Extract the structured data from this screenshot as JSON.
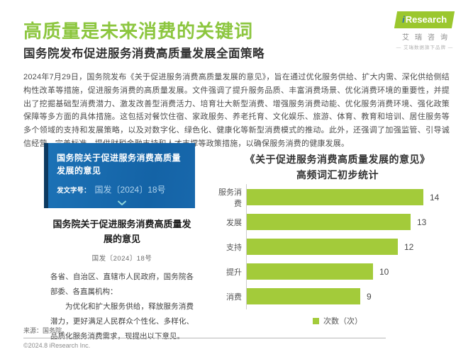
{
  "header": {
    "title": "高质量是未来消费的关键词",
    "subtitle": "国务院发布促进服务消费高质量发展全面策略"
  },
  "logo": {
    "brand_i": "i",
    "brand_text": "Research",
    "brand_cn": "艾瑞咨询",
    "tagline": "— 艾瑞数据旗下品牌 —"
  },
  "intro_paragraph": "2024年7月29日，国务院发布《关于促进服务消费高质量发展的意见》，旨在通过优化服务供给、扩大内需、深化供给侧结构性改革等措施，促进服务消费的高质量发展。文件强调了提升服务品质、丰富消费场景、优化消费环境的重要性，并提出了挖掘基础型消费潜力、激发改善型消费活力、培育壮大新型消费、增强服务消费动能、优化服务消费环境、强化政策保障等多方面的具体措施。这包括对餐饮住宿、家政服务、养老托育、文化娱乐、旅游、体育、教育和培训、居住服务等多个领域的支持和发展策略，以及对数字化、绿色化、健康化等新型消费模式的推动。此外，还强调了加强监管、引导诚信经营、完善标准、提供财税金融支持和人才支撑等政策措施，以确保服务消费的健康发展。",
  "policy_card": {
    "title": "国务院关于促进服务消费高质量发展的意见",
    "doc_number_label": "发文字号：",
    "doc_number_value": "国发〔2024〕18号"
  },
  "document_preview": {
    "title": "国务院关于促进服务消费高质量发展的意见",
    "doc_number": "国发〔2024〕18号",
    "salutation": "各省、自治区、直辖市人民政府，国务院各部委、各直属机构：",
    "body": "为优化和扩大服务供给，释放服务消费潜力，更好满足人民群众个性化、多样化、品质化服务消费需求，现提出以下意见。"
  },
  "chart_data": {
    "type": "bar",
    "orientation": "horizontal",
    "title": "《关于促进服务消费高质量发展的意见》高频词汇初步统计",
    "title_line1": "《关于促进服务消费高质量发展的意见》",
    "title_line2": "高频词汇初步统计",
    "categories": [
      "服务消费",
      "发展",
      "支持",
      "提升",
      "消费"
    ],
    "values": [
      14,
      13,
      12,
      10,
      9
    ],
    "xlim": [
      0,
      14
    ],
    "legend_label": "次数（次）",
    "legend_position": "bottom-center",
    "grid": false,
    "bar_color": "#a3cb3a"
  },
  "footer": {
    "source": "来源：国务院。",
    "copyright": "©2024.8 iResearch Inc."
  },
  "colors": {
    "accent_green": "#8cc63f",
    "bar_green": "#a3cb3a",
    "card_blue": "#1667ab",
    "card_blue_dark": "#0d3a61"
  }
}
